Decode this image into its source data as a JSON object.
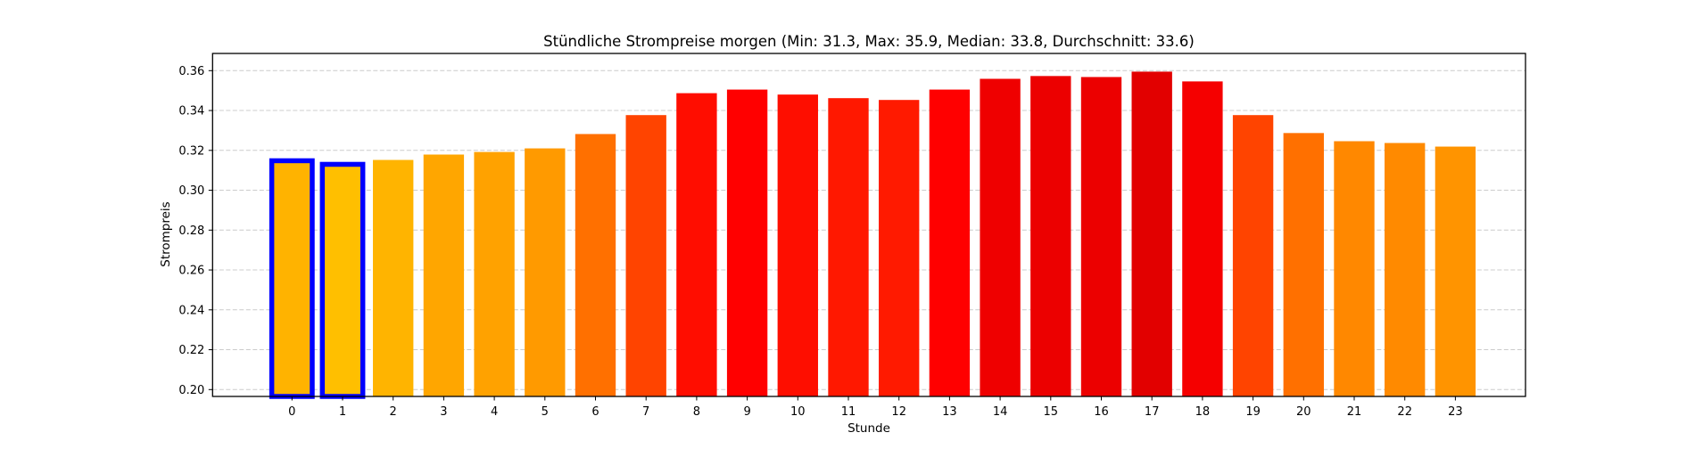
{
  "chart_data": {
    "type": "bar",
    "title": "Stündliche Strompreise morgen (Min: 31.3, Max: 35.9, Median: 33.8, Durchschnitt: 33.6)",
    "xlabel": "Stunde",
    "ylabel": "Strompreis",
    "categories": [
      "0",
      "1",
      "2",
      "3",
      "4",
      "5",
      "6",
      "7",
      "8",
      "9",
      "10",
      "11",
      "12",
      "13",
      "14",
      "15",
      "16",
      "17",
      "18",
      "19",
      "20",
      "21",
      "22",
      "23"
    ],
    "values": [
      0.3148,
      0.313,
      0.3152,
      0.3179,
      0.3192,
      0.321,
      0.3282,
      0.3377,
      0.3487,
      0.3505,
      0.348,
      0.3462,
      0.3453,
      0.3505,
      0.3559,
      0.3573,
      0.3568,
      0.3595,
      0.3546,
      0.3377,
      0.3287,
      0.3246,
      0.3237,
      0.3219
    ],
    "colors": [
      "#ffb300",
      "#ffbf00",
      "#ffb400",
      "#ffa600",
      "#ffa200",
      "#ff9a00",
      "#ff7000",
      "#ff4400",
      "#ff0d00",
      "#ff0000",
      "#fe0e00",
      "#ff1800",
      "#ff1a00",
      "#ff0000",
      "#ef0000",
      "#ec0000",
      "#ec0000",
      "#e20000",
      "#f50000",
      "#ff4400",
      "#ff7000",
      "#ff8800",
      "#ff8a00",
      "#ff9400"
    ],
    "highlighted_hours": [
      0,
      1
    ],
    "highlight_edge_color": "#0000ff",
    "yticks": [
      "0.20",
      "0.22",
      "0.24",
      "0.26",
      "0.28",
      "0.30",
      "0.32",
      "0.34",
      "0.36"
    ],
    "ylim": [
      0.1966,
      0.3685
    ],
    "xlim": [
      -1.55,
      24.0
    ],
    "grid": {
      "axis": "y",
      "style": "dashed",
      "color": "#cccccc"
    },
    "legend": null
  }
}
